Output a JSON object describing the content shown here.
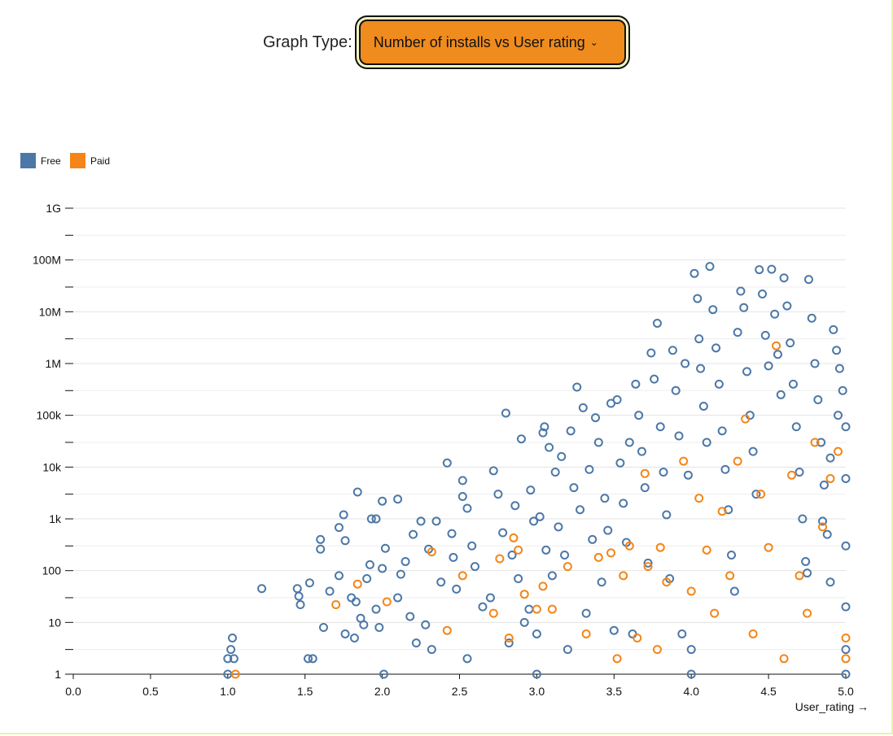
{
  "control": {
    "label": "Graph Type:",
    "selected": "Number of installs vs User rating",
    "chevron_icon": "chevron-down-icon"
  },
  "colors": {
    "free": "#4c78a8",
    "paid": "#f58518",
    "accent": "#f08b1e"
  },
  "chart_data": {
    "type": "scatter",
    "title": "",
    "xlabel": "User_rating →",
    "ylabel": "",
    "xlim": [
      0,
      5
    ],
    "ylim": [
      1,
      1000000000
    ],
    "yscale": "log",
    "grid": true,
    "legend": "top-left",
    "xticks": [
      "0.0",
      "0.5",
      "1.0",
      "1.5",
      "2.0",
      "2.5",
      "3.0",
      "3.5",
      "4.0",
      "4.5",
      "5.0"
    ],
    "yticks": [
      "1",
      "10",
      "100",
      "1k",
      "10k",
      "100k",
      "1M",
      "10M",
      "100M",
      "1G"
    ],
    "series": [
      {
        "name": "Free",
        "points": [
          [
            1.0,
            1
          ],
          [
            1.0,
            2
          ],
          [
            1.02,
            3
          ],
          [
            1.03,
            5
          ],
          [
            1.04,
            2
          ],
          [
            1.22,
            45
          ],
          [
            1.45,
            45
          ],
          [
            1.46,
            32
          ],
          [
            1.47,
            22
          ],
          [
            1.53,
            58
          ],
          [
            1.52,
            2
          ],
          [
            1.55,
            2
          ],
          [
            1.6,
            400
          ],
          [
            1.6,
            260
          ],
          [
            1.62,
            8
          ],
          [
            1.66,
            40
          ],
          [
            1.72,
            680
          ],
          [
            1.72,
            80
          ],
          [
            1.75,
            1200
          ],
          [
            1.76,
            380
          ],
          [
            1.76,
            6
          ],
          [
            1.8,
            30
          ],
          [
            1.82,
            5
          ],
          [
            1.83,
            25
          ],
          [
            1.84,
            3300
          ],
          [
            1.86,
            12
          ],
          [
            1.88,
            9
          ],
          [
            1.9,
            70
          ],
          [
            1.92,
            130
          ],
          [
            1.93,
            1000
          ],
          [
            1.96,
            1000
          ],
          [
            1.96,
            18
          ],
          [
            1.98,
            8
          ],
          [
            2.0,
            2200
          ],
          [
            2.0,
            110
          ],
          [
            2.01,
            1
          ],
          [
            2.02,
            270
          ],
          [
            2.1,
            2400
          ],
          [
            2.1,
            30
          ],
          [
            2.12,
            85
          ],
          [
            2.15,
            150
          ],
          [
            2.18,
            13
          ],
          [
            2.2,
            500
          ],
          [
            2.22,
            4
          ],
          [
            2.25,
            900
          ],
          [
            2.28,
            9
          ],
          [
            2.3,
            260
          ],
          [
            2.32,
            3
          ],
          [
            2.35,
            900
          ],
          [
            2.38,
            60
          ],
          [
            2.42,
            12000
          ],
          [
            2.45,
            520
          ],
          [
            2.46,
            180
          ],
          [
            2.48,
            44
          ],
          [
            2.52,
            5500
          ],
          [
            2.52,
            2700
          ],
          [
            2.55,
            2
          ],
          [
            2.55,
            1600
          ],
          [
            2.58,
            300
          ],
          [
            2.6,
            120
          ],
          [
            2.65,
            20
          ],
          [
            2.7,
            30
          ],
          [
            2.72,
            8500
          ],
          [
            2.75,
            3000
          ],
          [
            2.78,
            540
          ],
          [
            2.8,
            110000
          ],
          [
            2.82,
            4
          ],
          [
            2.84,
            200
          ],
          [
            2.86,
            1800
          ],
          [
            2.88,
            70
          ],
          [
            2.9,
            35000
          ],
          [
            2.92,
            10
          ],
          [
            2.95,
            18
          ],
          [
            2.96,
            3600
          ],
          [
            2.98,
            900
          ],
          [
            3.0,
            1
          ],
          [
            3.0,
            6
          ],
          [
            3.02,
            1100
          ],
          [
            3.04,
            46000
          ],
          [
            3.05,
            60000
          ],
          [
            3.06,
            250
          ],
          [
            3.08,
            24000
          ],
          [
            3.1,
            80
          ],
          [
            3.12,
            8000
          ],
          [
            3.14,
            700
          ],
          [
            3.16,
            16000
          ],
          [
            3.18,
            200
          ],
          [
            3.2,
            3
          ],
          [
            3.22,
            50000
          ],
          [
            3.24,
            4000
          ],
          [
            3.26,
            350000
          ],
          [
            3.28,
            1500
          ],
          [
            3.3,
            140000
          ],
          [
            3.32,
            15
          ],
          [
            3.34,
            9000
          ],
          [
            3.36,
            400
          ],
          [
            3.38,
            90000
          ],
          [
            3.4,
            30000
          ],
          [
            3.42,
            60
          ],
          [
            3.44,
            2500
          ],
          [
            3.46,
            600
          ],
          [
            3.48,
            170000
          ],
          [
            3.5,
            7
          ],
          [
            3.52,
            200000
          ],
          [
            3.54,
            12000
          ],
          [
            3.56,
            2000
          ],
          [
            3.58,
            350
          ],
          [
            3.6,
            30000
          ],
          [
            3.62,
            6
          ],
          [
            3.64,
            400000
          ],
          [
            3.66,
            100000
          ],
          [
            3.68,
            20000
          ],
          [
            3.7,
            4000
          ],
          [
            3.72,
            140
          ],
          [
            3.74,
            1600000
          ],
          [
            3.76,
            500000
          ],
          [
            3.78,
            6000000
          ],
          [
            3.8,
            60000
          ],
          [
            3.82,
            8000
          ],
          [
            3.84,
            1200
          ],
          [
            3.86,
            70
          ],
          [
            3.88,
            1800000
          ],
          [
            3.9,
            300000
          ],
          [
            3.92,
            40000
          ],
          [
            3.94,
            6
          ],
          [
            3.96,
            1000000
          ],
          [
            3.98,
            7000
          ],
          [
            4.0,
            1
          ],
          [
            4.0,
            3
          ],
          [
            4.02,
            55000000
          ],
          [
            4.04,
            18000000
          ],
          [
            4.05,
            3000000
          ],
          [
            4.06,
            800000
          ],
          [
            4.08,
            150000
          ],
          [
            4.1,
            30000
          ],
          [
            4.12,
            75000000
          ],
          [
            4.14,
            11000000
          ],
          [
            4.16,
            2000000
          ],
          [
            4.18,
            400000
          ],
          [
            4.2,
            50000
          ],
          [
            4.22,
            9000
          ],
          [
            4.24,
            1500
          ],
          [
            4.26,
            200
          ],
          [
            4.28,
            40
          ],
          [
            4.3,
            4000000
          ],
          [
            4.32,
            25000000
          ],
          [
            4.34,
            12000000
          ],
          [
            4.36,
            700000
          ],
          [
            4.38,
            100000
          ],
          [
            4.4,
            20000
          ],
          [
            4.42,
            3000
          ],
          [
            4.44,
            65000000
          ],
          [
            4.46,
            22000000
          ],
          [
            4.48,
            3500000
          ],
          [
            4.5,
            900000
          ],
          [
            4.52,
            66000000
          ],
          [
            4.54,
            9000000
          ],
          [
            4.56,
            1500000
          ],
          [
            4.58,
            250000
          ],
          [
            4.6,
            45000000
          ],
          [
            4.62,
            13000000
          ],
          [
            4.64,
            2500000
          ],
          [
            4.66,
            400000
          ],
          [
            4.68,
            60000
          ],
          [
            4.7,
            8000
          ],
          [
            4.72,
            1000
          ],
          [
            4.74,
            150
          ],
          [
            4.76,
            42000000
          ],
          [
            4.78,
            7500000
          ],
          [
            4.8,
            1000000
          ],
          [
            4.82,
            200000
          ],
          [
            4.84,
            30000
          ],
          [
            4.86,
            4500
          ],
          [
            4.88,
            500
          ],
          [
            4.9,
            60
          ],
          [
            4.92,
            4500000
          ],
          [
            4.94,
            1800000
          ],
          [
            4.96,
            800000
          ],
          [
            4.98,
            300000
          ],
          [
            5.0,
            60000
          ],
          [
            5.0,
            6000
          ],
          [
            5.0,
            300
          ],
          [
            5.0,
            20
          ],
          [
            5.0,
            3
          ],
          [
            5.0,
            1
          ],
          [
            4.95,
            100000
          ],
          [
            4.9,
            15000
          ],
          [
            4.85,
            900
          ],
          [
            4.75,
            90
          ]
        ]
      },
      {
        "name": "Paid",
        "points": [
          [
            1.05,
            1
          ],
          [
            1.7,
            22
          ],
          [
            1.84,
            55
          ],
          [
            2.03,
            25
          ],
          [
            2.32,
            230
          ],
          [
            2.42,
            7
          ],
          [
            2.52,
            80
          ],
          [
            2.72,
            15
          ],
          [
            2.76,
            170
          ],
          [
            2.82,
            5
          ],
          [
            2.85,
            430
          ],
          [
            2.88,
            250
          ],
          [
            2.92,
            35
          ],
          [
            3.0,
            18
          ],
          [
            3.04,
            50
          ],
          [
            3.1,
            18
          ],
          [
            3.2,
            120
          ],
          [
            3.32,
            6
          ],
          [
            3.4,
            180
          ],
          [
            3.48,
            220
          ],
          [
            3.52,
            2
          ],
          [
            3.56,
            80
          ],
          [
            3.6,
            300
          ],
          [
            3.65,
            5
          ],
          [
            3.7,
            7500
          ],
          [
            3.72,
            120
          ],
          [
            3.78,
            3
          ],
          [
            3.8,
            280
          ],
          [
            3.84,
            60
          ],
          [
            3.95,
            13000
          ],
          [
            4.0,
            40
          ],
          [
            4.05,
            2500
          ],
          [
            4.1,
            250
          ],
          [
            4.15,
            15
          ],
          [
            4.2,
            1400
          ],
          [
            4.25,
            80
          ],
          [
            4.3,
            13000
          ],
          [
            4.35,
            85000
          ],
          [
            4.4,
            6
          ],
          [
            4.45,
            3000
          ],
          [
            4.5,
            280
          ],
          [
            4.55,
            2200000
          ],
          [
            4.6,
            2
          ],
          [
            4.65,
            7000
          ],
          [
            4.7,
            80
          ],
          [
            4.75,
            15
          ],
          [
            4.8,
            30000
          ],
          [
            4.85,
            700
          ],
          [
            4.9,
            6000
          ],
          [
            4.95,
            20000
          ],
          [
            5.0,
            2
          ],
          [
            5.0,
            5
          ]
        ]
      }
    ]
  }
}
